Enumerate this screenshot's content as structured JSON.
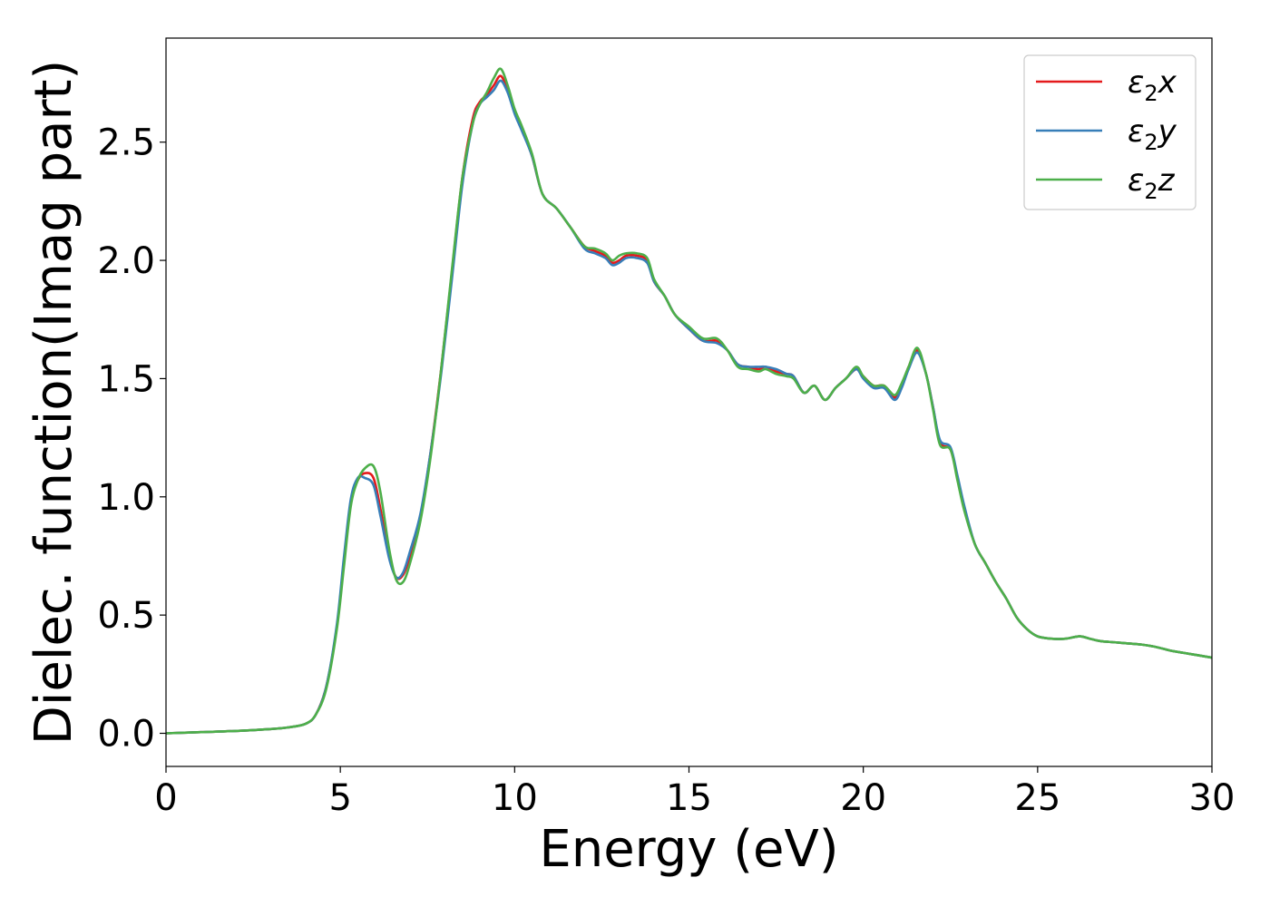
{
  "chart_data": {
    "type": "line",
    "xlabel": "Energy (eV)",
    "ylabel": "Dielec. function(Imag part)",
    "xlim": [
      0,
      30
    ],
    "ylim": [
      -0.14,
      2.94
    ],
    "xticks": [
      "0",
      "5",
      "10",
      "15",
      "20",
      "25",
      "30"
    ],
    "yticks": [
      "0.0",
      "0.5",
      "1.0",
      "1.5",
      "2.0",
      "2.5"
    ],
    "grid": false,
    "legend_position": "top-right",
    "series": [
      {
        "name": "ε2x",
        "name_base": "ε",
        "name_sub": "2",
        "name_tail": "x",
        "color": "#e41a1c",
        "x": [
          0,
          1,
          2,
          3,
          3.5,
          4,
          4.3,
          4.6,
          4.9,
          5.1,
          5.3,
          5.5,
          5.7,
          5.95,
          6.15,
          6.4,
          6.6,
          6.8,
          7.0,
          7.3,
          7.6,
          7.9,
          8.2,
          8.5,
          8.8,
          9.0,
          9.2,
          9.4,
          9.6,
          9.8,
          10.0,
          10.2,
          10.5,
          10.8,
          11.2,
          11.6,
          12.0,
          12.3,
          12.6,
          12.8,
          13.0,
          13.2,
          13.5,
          13.8,
          14.0,
          14.3,
          14.6,
          15.0,
          15.4,
          15.8,
          16.1,
          16.4,
          16.7,
          17.0,
          17.2,
          17.5,
          17.8,
          18.0,
          18.3,
          18.6,
          18.9,
          19.2,
          19.5,
          19.8,
          20.0,
          20.3,
          20.6,
          20.9,
          21.1,
          21.3,
          21.55,
          21.8,
          22.0,
          22.2,
          22.5,
          22.7,
          22.9,
          23.2,
          23.5,
          23.8,
          24.1,
          24.4,
          24.7,
          25.0,
          25.4,
          25.8,
          26.2,
          26.5,
          26.8,
          27.2,
          27.6,
          28.0,
          28.4,
          28.8,
          29.2,
          29.6,
          30.0
        ],
        "values": [
          0.0,
          0.005,
          0.01,
          0.018,
          0.025,
          0.04,
          0.08,
          0.2,
          0.45,
          0.72,
          0.98,
          1.07,
          1.1,
          1.08,
          0.95,
          0.75,
          0.66,
          0.67,
          0.75,
          0.92,
          1.2,
          1.55,
          1.95,
          2.35,
          2.6,
          2.67,
          2.7,
          2.74,
          2.78,
          2.72,
          2.63,
          2.56,
          2.44,
          2.28,
          2.22,
          2.14,
          2.06,
          2.04,
          2.02,
          1.99,
          2.0,
          2.02,
          2.02,
          2.0,
          1.91,
          1.85,
          1.77,
          1.71,
          1.66,
          1.66,
          1.62,
          1.56,
          1.55,
          1.54,
          1.55,
          1.53,
          1.52,
          1.51,
          1.44,
          1.47,
          1.41,
          1.46,
          1.5,
          1.54,
          1.51,
          1.47,
          1.47,
          1.42,
          1.47,
          1.55,
          1.62,
          1.52,
          1.38,
          1.23,
          1.2,
          1.08,
          0.95,
          0.8,
          0.72,
          0.64,
          0.57,
          0.49,
          0.44,
          0.41,
          0.4,
          0.4,
          0.41,
          0.4,
          0.39,
          0.385,
          0.38,
          0.375,
          0.365,
          0.35,
          0.34,
          0.33,
          0.32
        ]
      },
      {
        "name": "ε2y",
        "name_base": "ε",
        "name_sub": "2",
        "name_tail": "y",
        "color": "#377eb8",
        "x": [
          0,
          1,
          2,
          3,
          3.5,
          4,
          4.3,
          4.6,
          4.9,
          5.1,
          5.3,
          5.5,
          5.7,
          5.95,
          6.15,
          6.4,
          6.6,
          6.8,
          7.0,
          7.3,
          7.6,
          7.9,
          8.2,
          8.5,
          8.8,
          9.0,
          9.2,
          9.4,
          9.6,
          9.8,
          10.0,
          10.2,
          10.5,
          10.8,
          11.2,
          11.6,
          12.0,
          12.3,
          12.6,
          12.8,
          13.0,
          13.2,
          13.5,
          13.8,
          14.0,
          14.3,
          14.6,
          15.0,
          15.4,
          15.8,
          16.1,
          16.4,
          16.7,
          17.0,
          17.2,
          17.5,
          17.8,
          18.0,
          18.3,
          18.6,
          18.9,
          19.2,
          19.5,
          19.8,
          20.0,
          20.3,
          20.6,
          20.9,
          21.1,
          21.3,
          21.55,
          21.8,
          22.0,
          22.2,
          22.5,
          22.7,
          22.9,
          23.2,
          23.5,
          23.8,
          24.1,
          24.4,
          24.7,
          25.0,
          25.4,
          25.8,
          26.2,
          26.5,
          26.8,
          27.2,
          27.6,
          28.0,
          28.4,
          28.8,
          29.2,
          29.6,
          30.0
        ],
        "values": [
          0.0,
          0.005,
          0.01,
          0.018,
          0.025,
          0.04,
          0.08,
          0.2,
          0.46,
          0.74,
          0.99,
          1.08,
          1.08,
          1.05,
          0.92,
          0.74,
          0.66,
          0.68,
          0.77,
          0.93,
          1.2,
          1.53,
          1.92,
          2.32,
          2.58,
          2.66,
          2.69,
          2.72,
          2.76,
          2.71,
          2.62,
          2.55,
          2.44,
          2.28,
          2.22,
          2.14,
          2.05,
          2.03,
          2.01,
          1.98,
          1.99,
          2.01,
          2.01,
          1.99,
          1.91,
          1.85,
          1.77,
          1.71,
          1.66,
          1.65,
          1.62,
          1.56,
          1.55,
          1.55,
          1.55,
          1.54,
          1.52,
          1.51,
          1.44,
          1.47,
          1.41,
          1.46,
          1.5,
          1.54,
          1.5,
          1.46,
          1.46,
          1.41,
          1.46,
          1.54,
          1.61,
          1.52,
          1.38,
          1.24,
          1.21,
          1.09,
          0.96,
          0.8,
          0.72,
          0.64,
          0.57,
          0.49,
          0.44,
          0.41,
          0.4,
          0.4,
          0.41,
          0.4,
          0.39,
          0.385,
          0.38,
          0.375,
          0.365,
          0.35,
          0.34,
          0.33,
          0.32
        ]
      },
      {
        "name": "ε2z",
        "name_base": "ε",
        "name_sub": "2",
        "name_tail": "z",
        "color": "#4daf4a",
        "x": [
          0,
          1,
          2,
          3,
          3.5,
          4,
          4.3,
          4.6,
          4.9,
          5.1,
          5.3,
          5.5,
          5.7,
          5.95,
          6.15,
          6.4,
          6.6,
          6.8,
          7.0,
          7.3,
          7.6,
          7.9,
          8.2,
          8.5,
          8.8,
          9.0,
          9.2,
          9.4,
          9.6,
          9.8,
          10.0,
          10.2,
          10.5,
          10.8,
          11.2,
          11.6,
          12.0,
          12.3,
          12.6,
          12.8,
          13.0,
          13.2,
          13.5,
          13.8,
          14.0,
          14.3,
          14.6,
          15.0,
          15.4,
          15.8,
          16.1,
          16.4,
          16.7,
          17.0,
          17.2,
          17.5,
          17.8,
          18.0,
          18.3,
          18.6,
          18.9,
          19.2,
          19.5,
          19.8,
          20.0,
          20.3,
          20.6,
          20.9,
          21.1,
          21.3,
          21.55,
          21.8,
          22.0,
          22.2,
          22.5,
          22.7,
          22.9,
          23.2,
          23.5,
          23.8,
          24.1,
          24.4,
          24.7,
          25.0,
          25.4,
          25.8,
          26.2,
          26.5,
          26.8,
          27.2,
          27.6,
          28.0,
          28.4,
          28.8,
          29.2,
          29.6,
          30.0
        ],
        "values": [
          0.0,
          0.005,
          0.01,
          0.018,
          0.025,
          0.04,
          0.08,
          0.19,
          0.44,
          0.7,
          0.96,
          1.07,
          1.12,
          1.13,
          1.02,
          0.78,
          0.65,
          0.64,
          0.72,
          0.9,
          1.18,
          1.55,
          1.96,
          2.35,
          2.58,
          2.66,
          2.71,
          2.77,
          2.81,
          2.74,
          2.64,
          2.57,
          2.45,
          2.28,
          2.22,
          2.14,
          2.06,
          2.05,
          2.03,
          2.0,
          2.02,
          2.03,
          2.03,
          2.01,
          1.92,
          1.85,
          1.77,
          1.72,
          1.67,
          1.67,
          1.62,
          1.55,
          1.54,
          1.53,
          1.54,
          1.52,
          1.51,
          1.5,
          1.44,
          1.47,
          1.41,
          1.46,
          1.5,
          1.55,
          1.51,
          1.47,
          1.47,
          1.43,
          1.48,
          1.55,
          1.63,
          1.52,
          1.37,
          1.22,
          1.2,
          1.07,
          0.94,
          0.8,
          0.72,
          0.64,
          0.57,
          0.49,
          0.44,
          0.41,
          0.4,
          0.4,
          0.41,
          0.4,
          0.39,
          0.385,
          0.38,
          0.375,
          0.365,
          0.35,
          0.34,
          0.33,
          0.32
        ]
      }
    ]
  }
}
